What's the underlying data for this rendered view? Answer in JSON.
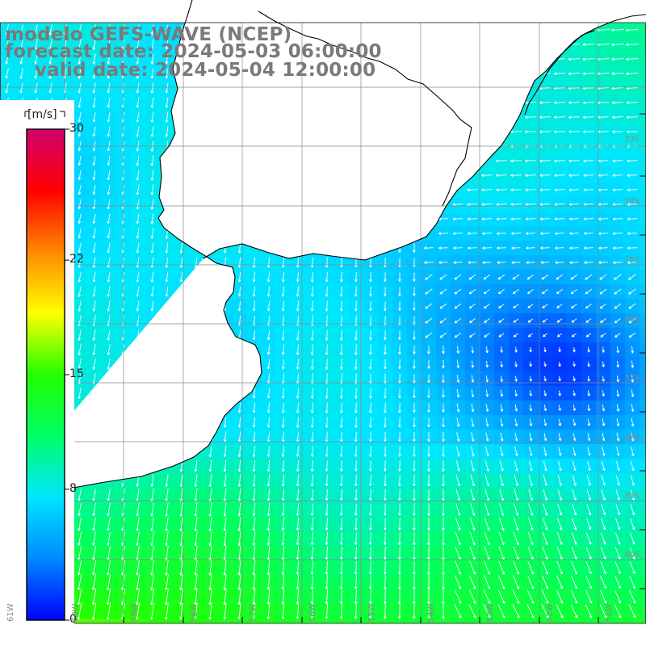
{
  "title": {
    "model": "modelo GEFS-WAVE (NCEP)",
    "forecast": "forecast date: 2024-05-03 06:00:00",
    "valid": "valid date: 2024-05-04 12:00:00"
  },
  "colorbar": {
    "units": "[m/s]",
    "min": 0,
    "max": 30,
    "ticks": [
      {
        "label": "30",
        "value": 30
      },
      {
        "label": "22",
        "value": 22
      },
      {
        "label": "15",
        "value": 15
      },
      {
        "label": "8",
        "value": 8
      },
      {
        "label": "0",
        "value": 0
      }
    ],
    "colors": [
      "#0000ff",
      "#0088ff",
      "#00e5ff",
      "#00ff66",
      "#22ff00",
      "#ffff00",
      "#ff8800",
      "#ff0000",
      "#d0006f"
    ]
  },
  "lat_labels": [
    "33S",
    "34S",
    "35S",
    "36S",
    "37S",
    "38S",
    "39S",
    "40S"
  ],
  "lon_labels": [
    "61W",
    "60W",
    "59W",
    "58W",
    "57W",
    "56W",
    "55W",
    "54W",
    "53W",
    "52W",
    "51W"
  ],
  "colors": {
    "land": "#ffffff",
    "coast": "#000000",
    "grid": "#888888",
    "arrow": "#ffffff",
    "title": "#7a7a7a"
  }
}
